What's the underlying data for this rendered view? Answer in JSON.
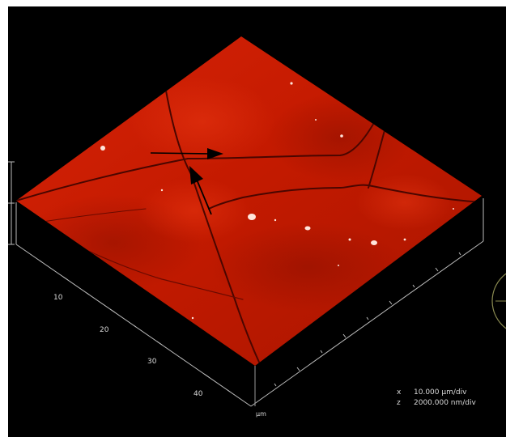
{
  "axis": {
    "ticks": [
      "10",
      "20",
      "30",
      "40"
    ],
    "unit": "µm"
  },
  "scale": {
    "x_label": "x",
    "x_value": "10.000 µm/div",
    "z_label": "z",
    "z_value": "2000.000 nm/div"
  },
  "colors": {
    "background": "#000000",
    "surface": "#c41a00",
    "surface_light": "#e12d09",
    "surface_dark": "#9e1200",
    "crack": "#4a0600",
    "axis_line": "#bdbdbd",
    "axis_text": "#d8d8d8",
    "arrow": "#000000",
    "right_circle": "#8a8a50"
  },
  "icons": [
    "arrow-right-icon",
    "arrow-up-left-icon"
  ]
}
